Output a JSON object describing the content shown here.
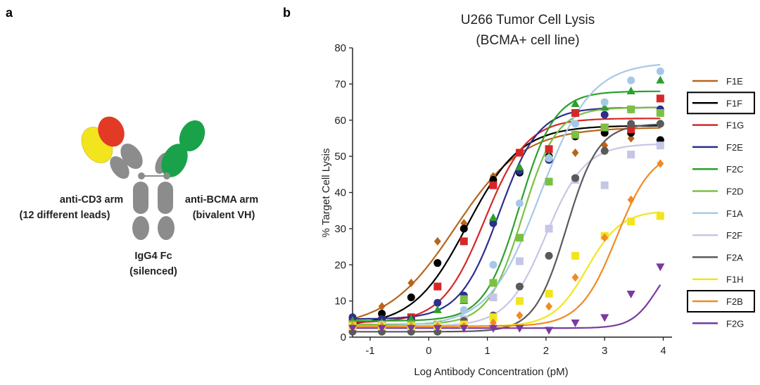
{
  "panels": {
    "a": {
      "letter": "a",
      "labels": {
        "cd3_arm": [
          "anti-CD3 arm",
          "(12 different leads)"
        ],
        "bcma_arm": [
          "anti-BCMA arm",
          "(bivalent VH)"
        ],
        "fc": [
          "IgG4 Fc",
          "(silenced)"
        ]
      },
      "colors": {
        "cd3_domain_1": "#f2e51e",
        "cd3_domain_2": "#e23a25",
        "bcma_domains": "#1aa24a",
        "body": "#8c8c8c"
      }
    },
    "b": {
      "letter": "b"
    }
  },
  "chart_data": {
    "type": "line",
    "title": [
      "U266 Tumor Cell Lysis",
      "(BCMA+ cell line)"
    ],
    "xlabel": "Log Antibody Concentration (pM)",
    "ylabel": "% Target Cell Lysis",
    "xlim": [
      -1.3,
      4.15
    ],
    "ylim": [
      0,
      80
    ],
    "xticks": [
      -1,
      0,
      1,
      2,
      3,
      4
    ],
    "yticks": [
      0,
      10,
      20,
      30,
      40,
      50,
      60,
      70,
      80
    ],
    "grid": false,
    "legend_position": "right",
    "boxed_legend_entries": [
      "F1F",
      "F2B"
    ],
    "x": [
      -1.3,
      -0.8,
      -0.3,
      0.15,
      0.6,
      1.1,
      1.55,
      2.05,
      2.5,
      3.0,
      3.45,
      3.95
    ],
    "series": [
      {
        "name": "F1E",
        "color": "#b8651b",
        "marker": "diamond",
        "fit": {
          "bottom": 2.5,
          "top": 58,
          "ec50": 0.45,
          "hill": 0.75
        },
        "values": [
          3.5,
          8.5,
          15,
          26.5,
          31.5,
          44.5,
          46,
          49.5,
          51,
          53,
          55,
          59
        ]
      },
      {
        "name": "F1F",
        "color": "#000000",
        "marker": "circle",
        "fit": {
          "bottom": 3,
          "top": 58.5,
          "ec50": 0.65,
          "hill": 0.95
        },
        "values": [
          4,
          6.5,
          11,
          20.5,
          30,
          43.5,
          45.5,
          50,
          55.5,
          56.5,
          56.5,
          54.5
        ]
      },
      {
        "name": "F1G",
        "color": "#d62728",
        "marker": "square",
        "fit": {
          "bottom": 4,
          "top": 60.5,
          "ec50": 0.95,
          "hill": 1.2
        },
        "values": [
          4,
          4.5,
          5.5,
          14,
          26.5,
          42,
          51,
          52,
          62,
          58,
          57.5,
          66
        ]
      },
      {
        "name": "F2E",
        "color": "#2c2f8c",
        "marker": "circle",
        "fit": {
          "bottom": 5,
          "top": 63.5,
          "ec50": 1.2,
          "hill": 1.3
        },
        "values": [
          5.5,
          5,
          5,
          9.5,
          11.5,
          31.5,
          46,
          49,
          56,
          61.5,
          63,
          63
        ]
      },
      {
        "name": "F2C",
        "color": "#2ca02c",
        "marker": "triangle",
        "fit": {
          "bottom": 4.5,
          "top": 68,
          "ec50": 1.55,
          "hill": 1.45
        },
        "values": [
          4.5,
          4,
          5,
          7.5,
          10,
          33,
          47,
          50,
          64.5,
          63.5,
          68,
          71
        ]
      },
      {
        "name": "F2D",
        "color": "#7bc043",
        "marker": "square",
        "fit": {
          "bottom": 3.5,
          "top": 63.5,
          "ec50": 1.6,
          "hill": 1.5
        },
        "values": [
          3.5,
          3.5,
          3.5,
          3.5,
          10.5,
          15,
          27.5,
          43,
          56,
          58,
          63,
          62
        ]
      },
      {
        "name": "F1A",
        "color": "#a6c8e8",
        "marker": "circle",
        "fit": {
          "bottom": 3,
          "top": 76,
          "ec50": 1.9,
          "hill": 1.0
        },
        "values": [
          3,
          3.5,
          3,
          3.5,
          7.5,
          20,
          37,
          49.5,
          59,
          65,
          71,
          73.5
        ]
      },
      {
        "name": "F2F",
        "color": "#c6c6e6",
        "marker": "square",
        "fit": {
          "bottom": 3,
          "top": 53.5,
          "ec50": 2.0,
          "hill": 1.3
        },
        "values": [
          3,
          3,
          3,
          3,
          5,
          11,
          21,
          30,
          43.5,
          42,
          50.5,
          53
        ]
      },
      {
        "name": "F2A",
        "color": "#5a5a5a",
        "marker": "circle",
        "fit": {
          "bottom": 1.5,
          "top": 59,
          "ec50": 2.35,
          "hill": 1.6
        },
        "values": [
          1.5,
          1.5,
          1.5,
          1.5,
          4.5,
          6,
          14,
          22.5,
          44,
          51.5,
          59,
          59
        ]
      },
      {
        "name": "F1H",
        "color": "#f2e51e",
        "marker": "square",
        "fit": {
          "bottom": 3,
          "top": 35,
          "ec50": 2.7,
          "hill": 1.5
        },
        "values": [
          3,
          3,
          3,
          3,
          3.5,
          5.5,
          10,
          12,
          22.5,
          28,
          32,
          33.5
        ]
      },
      {
        "name": "F2B",
        "color": "#f08a24",
        "marker": "diamond",
        "fit": {
          "bottom": 3,
          "top": 52,
          "ec50": 3.2,
          "hill": 1.4
        },
        "values": [
          3,
          3,
          3,
          3,
          3,
          4,
          6,
          8.5,
          16.5,
          27.5,
          38,
          48
        ]
      },
      {
        "name": "F2G",
        "color": "#7a3aa0",
        "marker": "triangle-down",
        "fit": {
          "bottom": 2.5,
          "top": 24,
          "ec50": 3.9,
          "hill": 2.0
        },
        "values": [
          2.5,
          2.5,
          2.5,
          2.5,
          2.5,
          2.5,
          2.5,
          2,
          4,
          5.5,
          12,
          19.5
        ]
      }
    ]
  }
}
